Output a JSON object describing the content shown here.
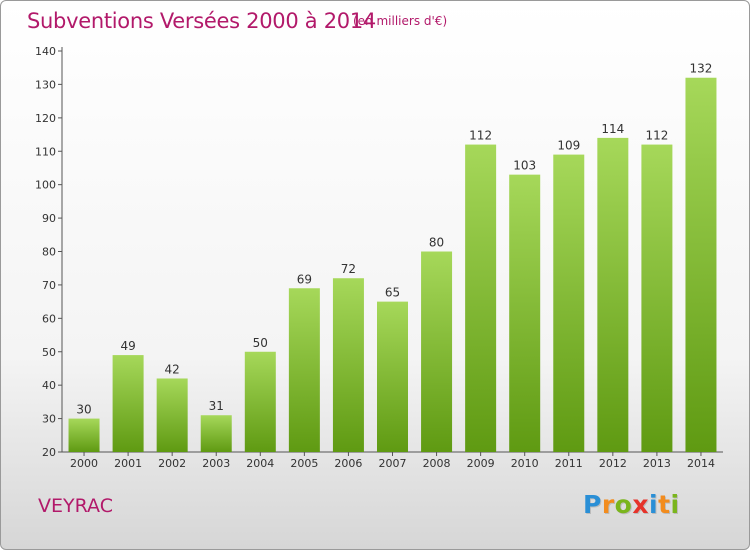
{
  "header": {
    "title": "Subventions Versées 2000 à 2014",
    "subtitle": "(en milliers d'€)"
  },
  "footer": {
    "commune": "VEYRAC",
    "logo_letters": [
      "P",
      "r",
      "o",
      "x",
      "i",
      "t",
      "i"
    ],
    "logo_colors": [
      "#2a8fd6",
      "#f28c1e",
      "#7ab51d",
      "#e6332a",
      "#2a8fd6",
      "#f28c1e",
      "#7ab51d"
    ]
  },
  "chart_data": {
    "type": "bar",
    "categories": [
      "2000",
      "2001",
      "2002",
      "2003",
      "2004",
      "2005",
      "2006",
      "2007",
      "2008",
      "2009",
      "2010",
      "2011",
      "2012",
      "2013",
      "2014"
    ],
    "values": [
      30,
      49,
      42,
      31,
      50,
      69,
      72,
      65,
      80,
      112,
      103,
      109,
      114,
      112,
      132
    ],
    "ylim": [
      20,
      140
    ],
    "yticks": [
      20,
      30,
      40,
      50,
      60,
      70,
      80,
      90,
      100,
      110,
      120,
      130,
      140
    ],
    "grid": false,
    "legend": "none",
    "bar_color_light": "#a6d85a",
    "bar_color_dark": "#5f9a12",
    "title": "Subventions Versées 2000 à 2014",
    "xlabel": "",
    "ylabel": ""
  }
}
